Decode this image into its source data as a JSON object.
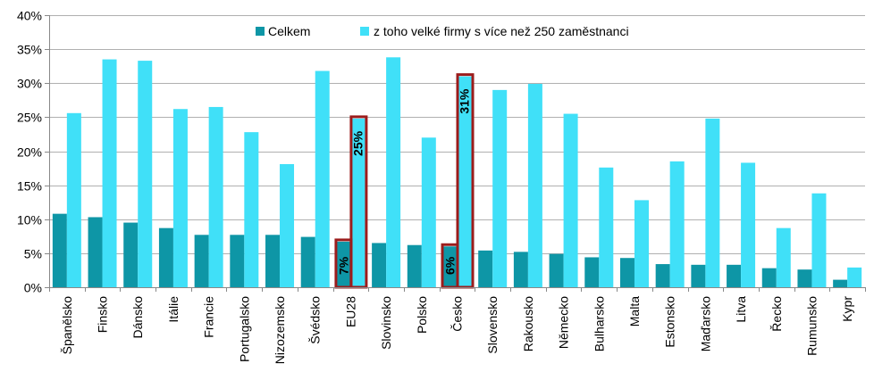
{
  "chart_data": {
    "type": "bar",
    "categories": [
      "Španělsko",
      "Finsko",
      "Dánsko",
      "Itálie",
      "Francie",
      "Portugalsko",
      "Nizozemsko",
      "Švédsko",
      "EU28",
      "Slovinsko",
      "Polsko",
      "Česko",
      "Slovensko",
      "Rakousko",
      "Německo",
      "Bulharsko",
      "Malta",
      "Estonsko",
      "Maďarsko",
      "Litva",
      "Řecko",
      "Rumunsko",
      "Kypr"
    ],
    "series": [
      {
        "name": "Celkem",
        "color": "#0e96a6",
        "values": [
          10.8,
          10.3,
          9.5,
          8.7,
          7.7,
          7.7,
          7.7,
          7.4,
          6.7,
          6.5,
          6.2,
          6.0,
          5.4,
          5.2,
          4.9,
          4.4,
          4.3,
          3.4,
          3.3,
          3.3,
          2.8,
          2.6,
          1.1
        ]
      },
      {
        "name": "z toho velké firmy s více než 250 zaměstnanci",
        "color": "#40e0f8",
        "values": [
          25.6,
          33.5,
          33.3,
          26.2,
          26.5,
          22.8,
          18.1,
          31.8,
          24.8,
          33.8,
          22.0,
          31.0,
          29.0,
          29.9,
          25.5,
          17.6,
          12.8,
          18.5,
          24.8,
          18.3,
          8.7,
          13.8,
          2.9
        ]
      }
    ],
    "ylim": [
      0,
      40
    ],
    "y_ticks": [
      0,
      5,
      10,
      15,
      20,
      25,
      30,
      35,
      40
    ],
    "y_tick_labels": [
      "0%",
      "5%",
      "10%",
      "15%",
      "20%",
      "25%",
      "30%",
      "35%",
      "40%"
    ],
    "grid": true,
    "legend_position": "top",
    "highlights": [
      {
        "category": "EU28",
        "labels": [
          "7%",
          "25%"
        ]
      },
      {
        "category": "Česko",
        "labels": [
          "6%",
          "31%"
        ]
      }
    ],
    "highlight_color": "#9b1c1c",
    "axis_color": "#888888",
    "grid_color": "#b0b0b0"
  }
}
